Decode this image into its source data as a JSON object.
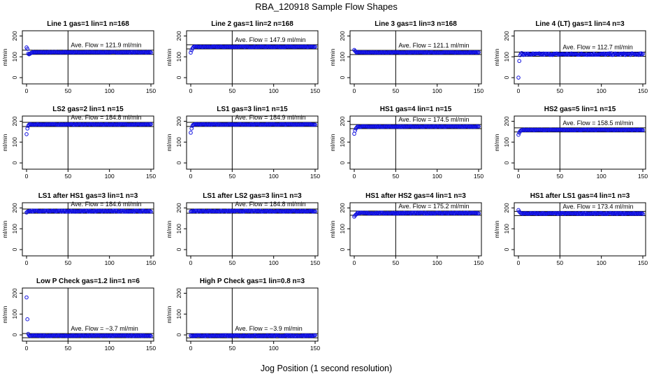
{
  "page": {
    "title": "RBA_120918  Sample Flow Shapes",
    "xlabel": "Jog Position (1 second resolution)"
  },
  "chart_data": [
    {
      "type": "scatter",
      "title": "Line 1 gas=1 lin=1 n=168",
      "ylabel": "ml/min",
      "xlim": [
        0,
        150
      ],
      "ylim": [
        -30,
        225
      ],
      "xticks": [
        0,
        50,
        100,
        150
      ],
      "yticks": [
        0,
        100,
        200
      ],
      "avg_label": "Ave. Flow =  121.9  ml/min",
      "avg": 121.9,
      "vline": 50,
      "series": [
        {
          "start": [
            145,
            138,
            115,
            112,
            114,
            117,
            120
          ],
          "level": 121.9,
          "noise": 1.5,
          "spikes": []
        }
      ]
    },
    {
      "type": "scatter",
      "title": "Line 2 gas=1 lin=2 n=168",
      "ylabel": "ml/min",
      "xlim": [
        0,
        150
      ],
      "ylim": [
        -30,
        225
      ],
      "xticks": [
        0,
        50,
        100,
        150
      ],
      "yticks": [
        0,
        100,
        200
      ],
      "avg_label": "Ave. Flow =  147.9  ml/min",
      "avg": 147.9,
      "vline": 50,
      "series": [
        {
          "start": [
            120,
            132,
            140,
            145
          ],
          "level": 147.9,
          "noise": 1.5,
          "spikes": []
        }
      ]
    },
    {
      "type": "scatter",
      "title": "Line 3 gas=1 lin=3 n=168",
      "ylabel": "ml/min",
      "xlim": [
        0,
        150
      ],
      "ylim": [
        -30,
        225
      ],
      "xticks": [
        0,
        50,
        100,
        150
      ],
      "yticks": [
        0,
        100,
        200
      ],
      "avg_label": "Ave. Flow =  121.1  ml/min",
      "avg": 121.1,
      "vline": 50,
      "series": [
        {
          "start": [
            133,
            128,
            124
          ],
          "level": 121.1,
          "noise": 1.2,
          "spikes": []
        }
      ]
    },
    {
      "type": "scatter",
      "title": "Line 4 (LT) gas=1 lin=4 n=3",
      "ylabel": "ml/min",
      "xlim": [
        0,
        150
      ],
      "ylim": [
        -30,
        225
      ],
      "xticks": [
        0,
        50,
        100,
        150
      ],
      "yticks": [
        0,
        100,
        200
      ],
      "avg_label": "Ave. Flow =  112.7  ml/min",
      "avg": 112.7,
      "vline": 50,
      "series": [
        {
          "start": [
            0,
            80,
            108,
            114,
            118
          ],
          "level": 112.7,
          "noise": 4,
          "spikes": []
        }
      ]
    },
    {
      "type": "scatter",
      "title": "LS2 gas=2 lin=1 n=15",
      "ylabel": "ml/min",
      "xlim": [
        0,
        150
      ],
      "ylim": [
        -30,
        225
      ],
      "xticks": [
        0,
        50,
        100,
        150
      ],
      "yticks": [
        0,
        100,
        200
      ],
      "avg_label": "Ave. Flow =  184.8  ml/min",
      "avg": 184.8,
      "vline": 50,
      "series": [
        {
          "start": [
            138,
            165,
            178,
            183
          ],
          "level": 184.8,
          "noise": 1.5,
          "spikes": []
        }
      ]
    },
    {
      "type": "scatter",
      "title": "LS1 gas=3 lin=1 n=15",
      "ylabel": "ml/min",
      "xlim": [
        0,
        150
      ],
      "ylim": [
        -30,
        225
      ],
      "xticks": [
        0,
        50,
        100,
        150
      ],
      "yticks": [
        0,
        100,
        200
      ],
      "avg_label": "Ave. Flow =  184.9  ml/min",
      "avg": 184.9,
      "vline": 50,
      "series": [
        {
          "start": [
            145,
            165,
            178,
            183
          ],
          "level": 184.9,
          "noise": 1.5,
          "spikes": []
        }
      ]
    },
    {
      "type": "scatter",
      "title": "HS1 gas=4 lin=1 n=15",
      "ylabel": "ml/min",
      "xlim": [
        0,
        150
      ],
      "ylim": [
        -30,
        225
      ],
      "xticks": [
        0,
        50,
        100,
        150
      ],
      "yticks": [
        0,
        100,
        200
      ],
      "avg_label": "Ave. Flow =  174.5  ml/min",
      "avg": 174.5,
      "vline": 50,
      "series": [
        {
          "start": [
            140,
            155,
            165,
            170
          ],
          "level": 174.5,
          "noise": 1.5,
          "spikes": []
        }
      ]
    },
    {
      "type": "scatter",
      "title": "HS2 gas=5 lin=1 n=15",
      "ylabel": "ml/min",
      "xlim": [
        0,
        150
      ],
      "ylim": [
        -30,
        225
      ],
      "xticks": [
        0,
        50,
        100,
        150
      ],
      "yticks": [
        0,
        100,
        200
      ],
      "avg_label": "Ave. Flow =  158.5  ml/min",
      "avg": 158.5,
      "vline": 50,
      "series": [
        {
          "start": [
            135,
            145,
            152,
            156
          ],
          "level": 158.5,
          "noise": 1.5,
          "spikes": []
        }
      ]
    },
    {
      "type": "scatter",
      "title": "LS1 after HS1 gas=3 lin=1 n=3",
      "ylabel": "ml/min",
      "xlim": [
        0,
        150
      ],
      "ylim": [
        -30,
        225
      ],
      "xticks": [
        0,
        50,
        100,
        150
      ],
      "yticks": [
        0,
        100,
        200
      ],
      "avg_label": "Ave. Flow =  184.6  ml/min",
      "avg": 184.6,
      "vline": 50,
      "series": [
        {
          "start": [
            178,
            182,
            184
          ],
          "level": 184.6,
          "noise": 3,
          "spikes": []
        }
      ]
    },
    {
      "type": "scatter",
      "title": "LS1 after LS2 gas=3 lin=1 n=3",
      "ylabel": "ml/min",
      "xlim": [
        0,
        150
      ],
      "ylim": [
        -30,
        225
      ],
      "xticks": [
        0,
        50,
        100,
        150
      ],
      "yticks": [
        0,
        100,
        200
      ],
      "avg_label": "Ave. Flow =  184.8  ml/min",
      "avg": 184.8,
      "vline": 50,
      "series": [
        {
          "start": [
            183,
            184
          ],
          "level": 184.8,
          "noise": 2.5,
          "spikes": []
        }
      ]
    },
    {
      "type": "scatter",
      "title": "HS1 after HS2 gas=4 lin=1 n=3",
      "ylabel": "ml/min",
      "xlim": [
        0,
        150
      ],
      "ylim": [
        -30,
        225
      ],
      "xticks": [
        0,
        50,
        100,
        150
      ],
      "yticks": [
        0,
        100,
        200
      ],
      "avg_label": "Ave. Flow =  175.2  ml/min",
      "avg": 175.2,
      "vline": 50,
      "series": [
        {
          "start": [
            158,
            164,
            168,
            171
          ],
          "level": 175.2,
          "noise": 2.5,
          "spikes": []
        }
      ]
    },
    {
      "type": "scatter",
      "title": "HS1 after LS1 gas=4 lin=1 n=3",
      "ylabel": "ml/min",
      "xlim": [
        0,
        150
      ],
      "ylim": [
        -30,
        225
      ],
      "xticks": [
        0,
        50,
        100,
        150
      ],
      "yticks": [
        0,
        100,
        200
      ],
      "avg_label": "Ave. Flow =  173.4  ml/min",
      "avg": 173.4,
      "vline": 50,
      "series": [
        {
          "start": [
            190,
            182,
            178,
            175
          ],
          "level": 173.4,
          "noise": 2.5,
          "spikes": []
        }
      ]
    },
    {
      "type": "scatter",
      "title": "Low P Check gas=1.2 lin=1 n=6",
      "ylabel": "ml/min",
      "xlim": [
        0,
        150
      ],
      "ylim": [
        -30,
        225
      ],
      "xticks": [
        0,
        50,
        100,
        150
      ],
      "yticks": [
        0,
        100,
        200
      ],
      "avg_label": "Ave. Flow =  −3.7  ml/min",
      "avg": -3.7,
      "vline": 50,
      "series": [
        {
          "start": [
            180,
            75,
            5,
            -2
          ],
          "level": -3.7,
          "noise": 2,
          "spikes": []
        }
      ]
    },
    {
      "type": "scatter",
      "title": "High P Check gas=1 lin=0.8 n=3",
      "ylabel": "ml/min",
      "xlim": [
        0,
        150
      ],
      "ylim": [
        -30,
        225
      ],
      "xticks": [
        0,
        50,
        100,
        150
      ],
      "yticks": [
        0,
        100,
        200
      ],
      "avg_label": "Ave. Flow =  −3.9  ml/min",
      "avg": -3.9,
      "vline": 50,
      "series": [
        {
          "start": [
            -3
          ],
          "level": -3.9,
          "noise": 2.5,
          "spikes": []
        }
      ]
    }
  ]
}
